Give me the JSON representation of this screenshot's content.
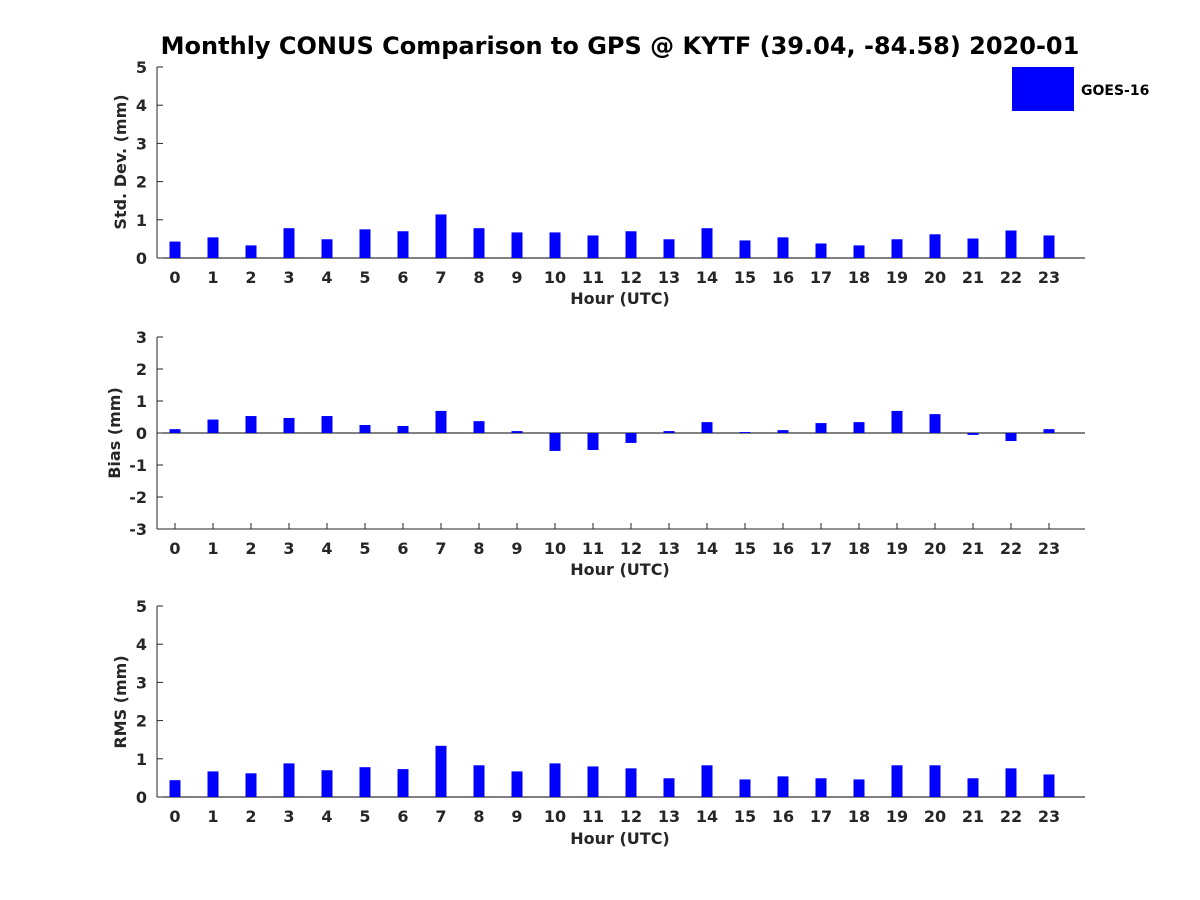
{
  "figure": {
    "title": "Monthly CONUS Comparison to GPS @ KYTF (39.04, -84.58) 2020-01",
    "legend_label": "GOES-16"
  },
  "colors": {
    "bar": "#0000ff",
    "axis": "#262626",
    "zero_line": "#000000"
  },
  "chart_data": [
    {
      "type": "bar",
      "xlabel": "Hour (UTC)",
      "ylabel": "Std. Dev. (mm)",
      "ylim": [
        0,
        5
      ],
      "yticks": [
        0,
        1,
        2,
        3,
        4,
        5
      ],
      "categories": [
        "0",
        "1",
        "2",
        "3",
        "4",
        "5",
        "6",
        "7",
        "8",
        "9",
        "10",
        "11",
        "12",
        "13",
        "14",
        "15",
        "16",
        "17",
        "18",
        "19",
        "20",
        "21",
        "22",
        "23"
      ],
      "series": [
        {
          "name": "GOES-16",
          "values": [
            0.43,
            0.54,
            0.33,
            0.78,
            0.49,
            0.75,
            0.7,
            1.14,
            0.78,
            0.67,
            0.67,
            0.59,
            0.7,
            0.49,
            0.78,
            0.46,
            0.54,
            0.38,
            0.33,
            0.49,
            0.62,
            0.51,
            0.72,
            0.59
          ]
        }
      ],
      "grid": false,
      "legend": "top-right"
    },
    {
      "type": "bar",
      "xlabel": "Hour (UTC)",
      "ylabel": "Bias (mm)",
      "ylim": [
        -3,
        3
      ],
      "yticks": [
        -3,
        -2,
        -1,
        0,
        1,
        2,
        3
      ],
      "categories": [
        "0",
        "1",
        "2",
        "3",
        "4",
        "5",
        "6",
        "7",
        "8",
        "9",
        "10",
        "11",
        "12",
        "13",
        "14",
        "15",
        "16",
        "17",
        "18",
        "19",
        "20",
        "21",
        "22",
        "23"
      ],
      "series": [
        {
          "name": "GOES-16",
          "values": [
            0.12,
            0.42,
            0.53,
            0.47,
            0.53,
            0.25,
            0.22,
            0.69,
            0.37,
            0.06,
            -0.56,
            -0.53,
            -0.31,
            0.06,
            0.34,
            0.03,
            0.09,
            0.31,
            0.34,
            0.69,
            0.59,
            -0.06,
            -0.25,
            0.12
          ]
        }
      ],
      "grid": false
    },
    {
      "type": "bar",
      "xlabel": "Hour (UTC)",
      "ylabel": "RMS (mm)",
      "ylim": [
        0,
        5
      ],
      "yticks": [
        0,
        1,
        2,
        3,
        4,
        5
      ],
      "categories": [
        "0",
        "1",
        "2",
        "3",
        "4",
        "5",
        "6",
        "7",
        "8",
        "9",
        "10",
        "11",
        "12",
        "13",
        "14",
        "15",
        "16",
        "17",
        "18",
        "19",
        "20",
        "21",
        "22",
        "23"
      ],
      "series": [
        {
          "name": "GOES-16",
          "values": [
            0.44,
            0.67,
            0.62,
            0.88,
            0.7,
            0.78,
            0.73,
            1.34,
            0.83,
            0.67,
            0.88,
            0.8,
            0.75,
            0.49,
            0.83,
            0.46,
            0.54,
            0.49,
            0.46,
            0.83,
            0.83,
            0.49,
            0.75,
            0.59
          ]
        }
      ],
      "grid": false
    }
  ]
}
